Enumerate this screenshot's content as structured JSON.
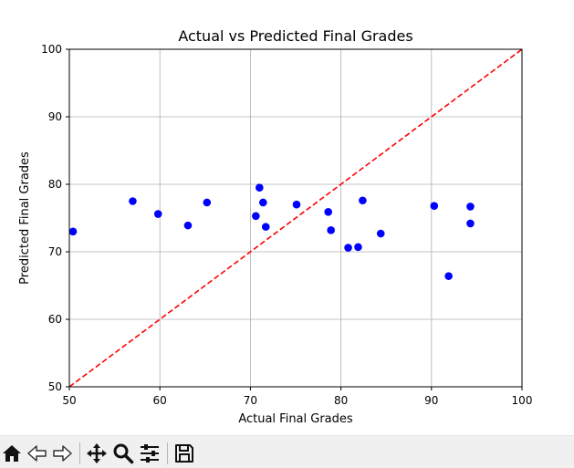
{
  "chart_data": {
    "type": "scatter",
    "title": "Actual vs Predicted Final Grades",
    "xlabel": "Actual Final Grades",
    "ylabel": "Predicted Final Grades",
    "xlim": [
      50,
      100
    ],
    "ylim": [
      50,
      100
    ],
    "xticks": [
      50,
      60,
      70,
      80,
      90,
      100
    ],
    "yticks": [
      50,
      60,
      70,
      80,
      90,
      100
    ],
    "xtick_labels": [
      "50",
      "60",
      "70",
      "80",
      "90",
      "100"
    ],
    "ytick_labels": [
      "50",
      "60",
      "70",
      "80",
      "90",
      "100"
    ],
    "grid": true,
    "point_color": "#0000ff",
    "reference_line": {
      "style": "dashed",
      "color": "#ff0000",
      "x": [
        50,
        100
      ],
      "y": [
        50,
        100
      ]
    },
    "points": [
      {
        "x": 50.4,
        "y": 73.0
      },
      {
        "x": 57.0,
        "y": 77.5
      },
      {
        "x": 59.8,
        "y": 75.6
      },
      {
        "x": 63.1,
        "y": 73.9
      },
      {
        "x": 65.2,
        "y": 77.3
      },
      {
        "x": 70.6,
        "y": 75.3
      },
      {
        "x": 71.0,
        "y": 79.5
      },
      {
        "x": 71.4,
        "y": 77.3
      },
      {
        "x": 71.7,
        "y": 73.7
      },
      {
        "x": 75.1,
        "y": 77.0
      },
      {
        "x": 78.6,
        "y": 75.9
      },
      {
        "x": 78.9,
        "y": 73.2
      },
      {
        "x": 80.8,
        "y": 70.6
      },
      {
        "x": 81.9,
        "y": 70.7
      },
      {
        "x": 82.4,
        "y": 77.6
      },
      {
        "x": 84.4,
        "y": 72.7
      },
      {
        "x": 90.3,
        "y": 76.8
      },
      {
        "x": 91.9,
        "y": 66.4
      },
      {
        "x": 94.3,
        "y": 76.7
      },
      {
        "x": 94.3,
        "y": 74.2
      }
    ]
  },
  "toolbar": {
    "buttons": [
      {
        "name": "home-icon"
      },
      {
        "name": "back-icon"
      },
      {
        "name": "forward-icon"
      },
      {
        "name": "pan-icon"
      },
      {
        "name": "zoom-icon"
      },
      {
        "name": "configure-subplots-icon"
      },
      {
        "name": "save-icon"
      }
    ]
  }
}
